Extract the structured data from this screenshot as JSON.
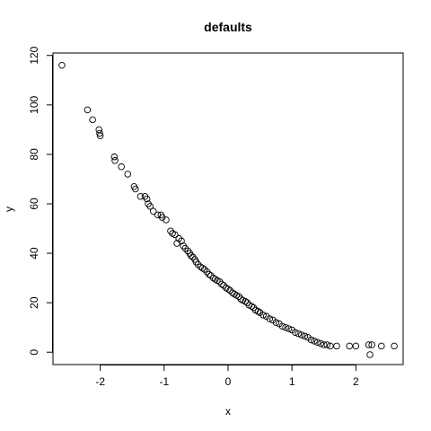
{
  "chart_data": {
    "type": "scatter",
    "title": "defaults",
    "xlabel": "x",
    "ylabel": "y",
    "xlim": [
      -2.74,
      2.74
    ],
    "ylim": [
      -5,
      121
    ],
    "xticks": [
      -2,
      -1,
      0,
      1,
      2
    ],
    "yticks": [
      0,
      20,
      40,
      60,
      80,
      100,
      120
    ],
    "grid": false,
    "marker": "open-circle",
    "point_color": "#000000",
    "points": [
      [
        -2.6,
        116
      ],
      [
        -2.2,
        98
      ],
      [
        -2.12,
        94
      ],
      [
        -2.02,
        90
      ],
      [
        -2.01,
        88.5
      ],
      [
        -2.0,
        87.5
      ],
      [
        -1.78,
        79
      ],
      [
        -1.77,
        77.5
      ],
      [
        -1.67,
        75
      ],
      [
        -1.57,
        72
      ],
      [
        -1.47,
        67
      ],
      [
        -1.45,
        66
      ],
      [
        -1.37,
        63
      ],
      [
        -1.3,
        63
      ],
      [
        -1.27,
        62
      ],
      [
        -1.25,
        60
      ],
      [
        -1.22,
        59
      ],
      [
        -1.17,
        57
      ],
      [
        -1.1,
        55.5
      ],
      [
        -1.05,
        55.5
      ],
      [
        -1.03,
        54.5
      ],
      [
        -0.97,
        53.5
      ],
      [
        -0.9,
        49
      ],
      [
        -0.87,
        48
      ],
      [
        -0.83,
        47.5
      ],
      [
        -0.8,
        44
      ],
      [
        -0.77,
        46
      ],
      [
        -0.73,
        45
      ],
      [
        -0.7,
        43
      ],
      [
        -0.67,
        42
      ],
      [
        -0.63,
        41
      ],
      [
        -0.6,
        40
      ],
      [
        -0.58,
        39
      ],
      [
        -0.55,
        38.5
      ],
      [
        -0.52,
        37.5
      ],
      [
        -0.5,
        36.5
      ],
      [
        -0.47,
        35.5
      ],
      [
        -0.43,
        34.5
      ],
      [
        -0.4,
        34
      ],
      [
        -0.37,
        33.5
      ],
      [
        -0.33,
        32.5
      ],
      [
        -0.3,
        31.5
      ],
      [
        -0.27,
        31
      ],
      [
        -0.23,
        30
      ],
      [
        -0.2,
        29.5
      ],
      [
        -0.17,
        29
      ],
      [
        -0.13,
        28.5
      ],
      [
        -0.1,
        27.5
      ],
      [
        -0.07,
        27
      ],
      [
        -0.03,
        26
      ],
      [
        0.0,
        25.5
      ],
      [
        0.03,
        25
      ],
      [
        0.07,
        24
      ],
      [
        0.1,
        23.5
      ],
      [
        0.13,
        23
      ],
      [
        0.17,
        22.5
      ],
      [
        0.2,
        21.5
      ],
      [
        0.23,
        21
      ],
      [
        0.27,
        20.5
      ],
      [
        0.3,
        20
      ],
      [
        0.33,
        19
      ],
      [
        0.37,
        18.5
      ],
      [
        0.4,
        18
      ],
      [
        0.43,
        17
      ],
      [
        0.47,
        16.5
      ],
      [
        0.5,
        16
      ],
      [
        0.55,
        15
      ],
      [
        0.6,
        14.5
      ],
      [
        0.65,
        13.5
      ],
      [
        0.7,
        13
      ],
      [
        0.75,
        12
      ],
      [
        0.8,
        11.5
      ],
      [
        0.85,
        10.5
      ],
      [
        0.9,
        10
      ],
      [
        0.95,
        9.5
      ],
      [
        1.0,
        9
      ],
      [
        1.05,
        8
      ],
      [
        1.1,
        7.5
      ],
      [
        1.15,
        7
      ],
      [
        1.2,
        6.5
      ],
      [
        1.25,
        6
      ],
      [
        1.3,
        5
      ],
      [
        1.35,
        4.5
      ],
      [
        1.4,
        4
      ],
      [
        1.45,
        3.5
      ],
      [
        1.5,
        3
      ],
      [
        1.55,
        3
      ],
      [
        1.6,
        2.5
      ],
      [
        1.7,
        2.5
      ],
      [
        1.9,
        2.5
      ],
      [
        2.0,
        2.5
      ],
      [
        2.2,
        3
      ],
      [
        2.25,
        3
      ],
      [
        2.4,
        2.5
      ],
      [
        2.6,
        2.5
      ],
      [
        2.22,
        -1
      ]
    ]
  }
}
